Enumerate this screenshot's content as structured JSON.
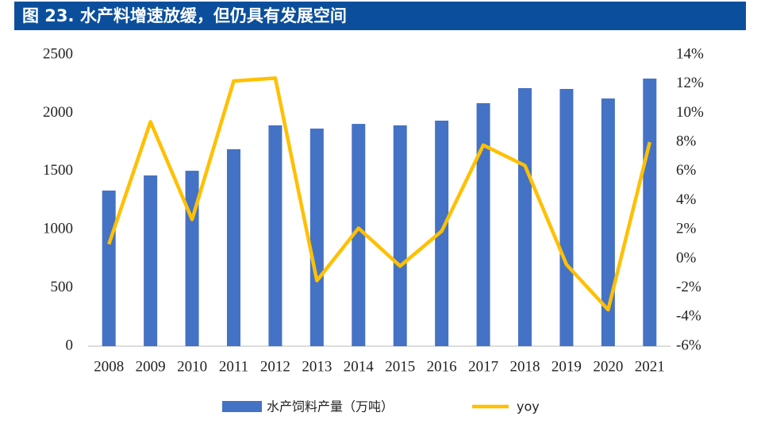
{
  "chart_data": {
    "type": "bar-line",
    "title": "图 23. 水产料增速放缓，但仍具有发展空间",
    "categories": [
      "2008",
      "2009",
      "2010",
      "2011",
      "2012",
      "2013",
      "2014",
      "2015",
      "2016",
      "2017",
      "2018",
      "2019",
      "2020",
      "2021"
    ],
    "series": [
      {
        "name": "水产饲料产量（万吨）",
        "type": "bar",
        "color": "#4472c4",
        "axis": "y",
        "values": [
          1335,
          1465,
          1505,
          1690,
          1895,
          1867,
          1907,
          1895,
          1935,
          2085,
          2214,
          2207,
          2125,
          2296
        ]
      },
      {
        "name": "yoy",
        "type": "line",
        "color": "#ffc000",
        "axis": "y2",
        "values": [
          1.0,
          9.4,
          2.7,
          12.2,
          12.4,
          -1.5,
          2.1,
          -0.5,
          1.9,
          7.8,
          6.4,
          -0.4,
          -3.5,
          8.0
        ]
      }
    ],
    "ylim": [
      0,
      2500
    ],
    "yticks": [
      0,
      500,
      1000,
      1500,
      2000,
      2500
    ],
    "y2lim": [
      -6,
      14
    ],
    "y2ticks": [
      {
        "value": -6,
        "label": "-6%"
      },
      {
        "value": -4,
        "label": "-4%"
      },
      {
        "value": -2,
        "label": "-2%"
      },
      {
        "value": 0,
        "label": "0%"
      },
      {
        "value": 2,
        "label": "2%"
      },
      {
        "value": 4,
        "label": "4%"
      },
      {
        "value": 6,
        "label": "6%"
      },
      {
        "value": 8,
        "label": "8%"
      },
      {
        "value": 10,
        "label": "10%"
      },
      {
        "value": 12,
        "label": "12%"
      },
      {
        "value": 14,
        "label": "14%"
      }
    ],
    "grid": false
  }
}
